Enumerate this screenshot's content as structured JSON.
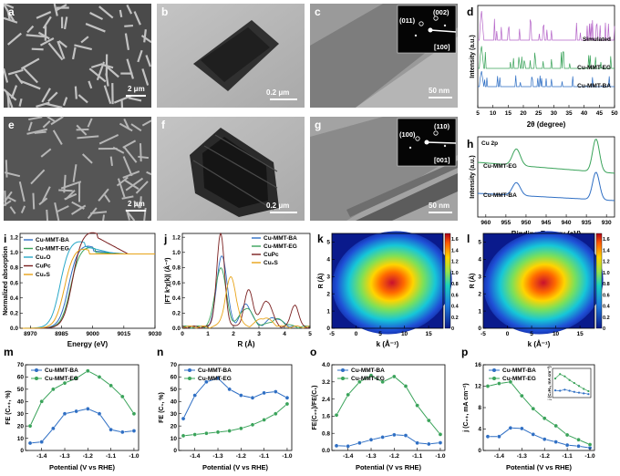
{
  "panel_letters": {
    "a": "a",
    "b": "b",
    "c": "c",
    "d": "d",
    "e": "e",
    "f": "f",
    "g": "g",
    "h": "h",
    "i": "i",
    "j": "j",
    "k": "k",
    "l": "l",
    "m": "m",
    "n": "n",
    "o": "o",
    "p": "p"
  },
  "scalebars": {
    "a": "2 μm",
    "b": "0.2 μm",
    "c": "50 nm",
    "e": "2 μm",
    "f": "0.2 μm",
    "g": "50 nm"
  },
  "saed": {
    "c": {
      "spot1": "(011)",
      "spot2": "(002)",
      "zone": "[100]"
    },
    "g": {
      "spot1": "(100)",
      "spot2": "(110)",
      "zone": "[001]"
    }
  },
  "xrd": {
    "xlabel": "2θ (degree)",
    "ylabel": "Intensity (a.u.)",
    "xticks": [
      "5",
      "10",
      "15",
      "20",
      "25",
      "30",
      "35",
      "40",
      "45",
      "50"
    ],
    "xlim": [
      5,
      50
    ],
    "series": [
      {
        "name": "Simulated",
        "color": "#b565c8"
      },
      {
        "name": "Cu-MMT-EG",
        "color": "#3aa35a"
      },
      {
        "name": "Cu-MMT-BA",
        "color": "#2f6fc4"
      }
    ]
  },
  "xps": {
    "title": "Cu 2p",
    "xlabel": "Binding Energy  (eV)",
    "ylabel": "Intensity (a.u.)",
    "xticks": [
      "960",
      "955",
      "950",
      "945",
      "940",
      "935",
      "930"
    ],
    "xlim": [
      962,
      928
    ],
    "series": [
      {
        "name": "Cu-MMT-EG",
        "color": "#3aa35a"
      },
      {
        "name": "Cu-MMT-BA",
        "color": "#2f6fc4"
      }
    ],
    "peaks_eV": [
      952.4,
      932.6
    ]
  },
  "xanes": {
    "xlabel": "Energy (eV)",
    "ylabel": "Normalized absorption",
    "xticks": [
      "8970",
      "8985",
      "9000",
      "9015",
      "9030"
    ],
    "yticks": [
      "0.0",
      "0.2",
      "0.4",
      "0.6",
      "0.8",
      "1.0",
      "1.2"
    ],
    "xlim": [
      8965,
      9030
    ],
    "ylim": [
      0,
      1.25
    ],
    "series": [
      {
        "name": "Cu-MMT-BA",
        "color": "#2f6fc4"
      },
      {
        "name": "Cu-MMT-EG",
        "color": "#3aa35a"
      },
      {
        "name": "Cu₂O",
        "color": "#29a8c8"
      },
      {
        "name": "CuPc",
        "color": "#7a1f1f"
      },
      {
        "name": "Cu₂S",
        "color": "#e8a317"
      }
    ]
  },
  "exafs": {
    "xlabel": "R (Å)",
    "ylabel": "|FT k²χ(k)| (Å⁻³)",
    "xticks": [
      "0",
      "1",
      "2",
      "3",
      "4",
      "5"
    ],
    "yticks": [
      "0.0",
      "0.2",
      "0.4",
      "0.6",
      "0.8",
      "1.0",
      "1.2"
    ],
    "xlim": [
      0,
      5
    ],
    "ylim": [
      0,
      1.25
    ],
    "series": [
      {
        "name": "Cu-MMT-BA",
        "color": "#2f6fc4"
      },
      {
        "name": "Cu-MMT-EG",
        "color": "#3aa35a"
      },
      {
        "name": "CuPc",
        "color": "#7a1f1f"
      },
      {
        "name": "Cu₂S",
        "color": "#e8a317"
      }
    ]
  },
  "wavelet": {
    "xlabel": "k (Å⁻¹)",
    "ylabel": "R (Å)",
    "xticks": [
      "-5",
      "0",
      "5",
      "10",
      "15"
    ],
    "yticks": [
      "0",
      "1",
      "2",
      "3",
      "4",
      "5"
    ],
    "cbar": [
      "0",
      "0.2",
      "0.4",
      "0.6",
      "0.8",
      "1.0",
      "1.2",
      "1.4",
      "1.6"
    ]
  },
  "chart_data": [
    {
      "type": "line",
      "panel": "m",
      "xlabel": "Potential (V vs RHE)",
      "ylabel": "FE (C₂₊, %)",
      "x": [
        -1.45,
        -1.4,
        -1.35,
        -1.3,
        -1.25,
        -1.2,
        -1.15,
        -1.1,
        -1.05,
        -1.0
      ],
      "xticks": [
        "-1.4",
        "-1.3",
        "-1.2",
        "-1.1",
        "-1.0"
      ],
      "ylim": [
        0,
        70
      ],
      "yticks": [
        "0",
        "10",
        "20",
        "30",
        "40",
        "50",
        "60",
        "70"
      ],
      "series": [
        {
          "name": "Cu-MMT-BA",
          "color": "#2f6fc4",
          "values": [
            6,
            7,
            18,
            30,
            32,
            34,
            30,
            17,
            15,
            16
          ]
        },
        {
          "name": "Cu-MMT-EG",
          "color": "#3aa35a",
          "values": [
            20,
            40,
            50,
            55,
            59,
            65,
            60,
            53,
            44,
            30
          ]
        }
      ]
    },
    {
      "type": "line",
      "panel": "n",
      "xlabel": "Potential (V vs RHE)",
      "ylabel": "FE (C₁, %)",
      "x": [
        -1.45,
        -1.4,
        -1.35,
        -1.3,
        -1.25,
        -1.2,
        -1.15,
        -1.1,
        -1.05,
        -1.0
      ],
      "xticks": [
        "-1.4",
        "-1.3",
        "-1.2",
        "-1.1",
        "-1.0"
      ],
      "ylim": [
        0,
        70
      ],
      "yticks": [
        "0",
        "10",
        "20",
        "30",
        "40",
        "50",
        "60",
        "70"
      ],
      "series": [
        {
          "name": "Cu-MMT-BA",
          "color": "#2f6fc4",
          "values": [
            26,
            45,
            56,
            59,
            50,
            45,
            43,
            47,
            48,
            43
          ]
        },
        {
          "name": "Cu-MMT-EG",
          "color": "#3aa35a",
          "values": [
            12,
            13,
            14,
            15,
            16,
            18,
            21,
            25,
            30,
            38
          ]
        }
      ]
    },
    {
      "type": "line",
      "panel": "o",
      "xlabel": "Potential (V vs RHE)",
      "ylabel": "FE(C₂₊)/FE(C₁)",
      "x": [
        -1.45,
        -1.4,
        -1.35,
        -1.3,
        -1.25,
        -1.2,
        -1.15,
        -1.1,
        -1.05,
        -1.0
      ],
      "xticks": [
        "-1.4",
        "-1.3",
        "-1.2",
        "-1.1",
        "-1.0"
      ],
      "ylim": [
        0,
        4.0
      ],
      "yticks": [
        "0.0",
        "0.8",
        "1.6",
        "2.4",
        "3.2",
        "4.0"
      ],
      "series": [
        {
          "name": "Cu-MMT-BA",
          "color": "#2f6fc4",
          "values": [
            0.22,
            0.2,
            0.35,
            0.5,
            0.62,
            0.73,
            0.7,
            0.35,
            0.3,
            0.36
          ]
        },
        {
          "name": "Cu-MMT-EG",
          "color": "#3aa35a",
          "values": [
            1.65,
            2.6,
            3.2,
            3.5,
            3.2,
            3.45,
            3.0,
            2.1,
            1.4,
            0.75
          ]
        }
      ]
    },
    {
      "type": "line",
      "panel": "p",
      "xlabel": "Potential (V vs RHE)",
      "ylabel": "j (C₂₊, mA cm⁻²)",
      "x": [
        -1.45,
        -1.4,
        -1.35,
        -1.3,
        -1.25,
        -1.2,
        -1.15,
        -1.1,
        -1.05,
        -1.0
      ],
      "xticks": [
        "-1.4",
        "-1.3",
        "-1.2",
        "-1.1",
        "-1.0"
      ],
      "ylim": [
        0,
        16
      ],
      "yticks": [
        "0",
        "4",
        "8",
        "12",
        "16"
      ],
      "inset_ylabel": "j (C₂H₄, mA cm⁻²)",
      "series": [
        {
          "name": "Cu-MMT-BA",
          "color": "#2f6fc4",
          "values": [
            2.6,
            2.6,
            4.2,
            4.1,
            3.0,
            2.1,
            1.6,
            1.0,
            0.8,
            0.5
          ]
        },
        {
          "name": "Cu-MMT-EG",
          "color": "#3aa35a",
          "values": [
            12.0,
            12.5,
            12.8,
            10.2,
            7.8,
            6.0,
            4.6,
            2.9,
            2.0,
            1.1
          ]
        }
      ]
    }
  ]
}
